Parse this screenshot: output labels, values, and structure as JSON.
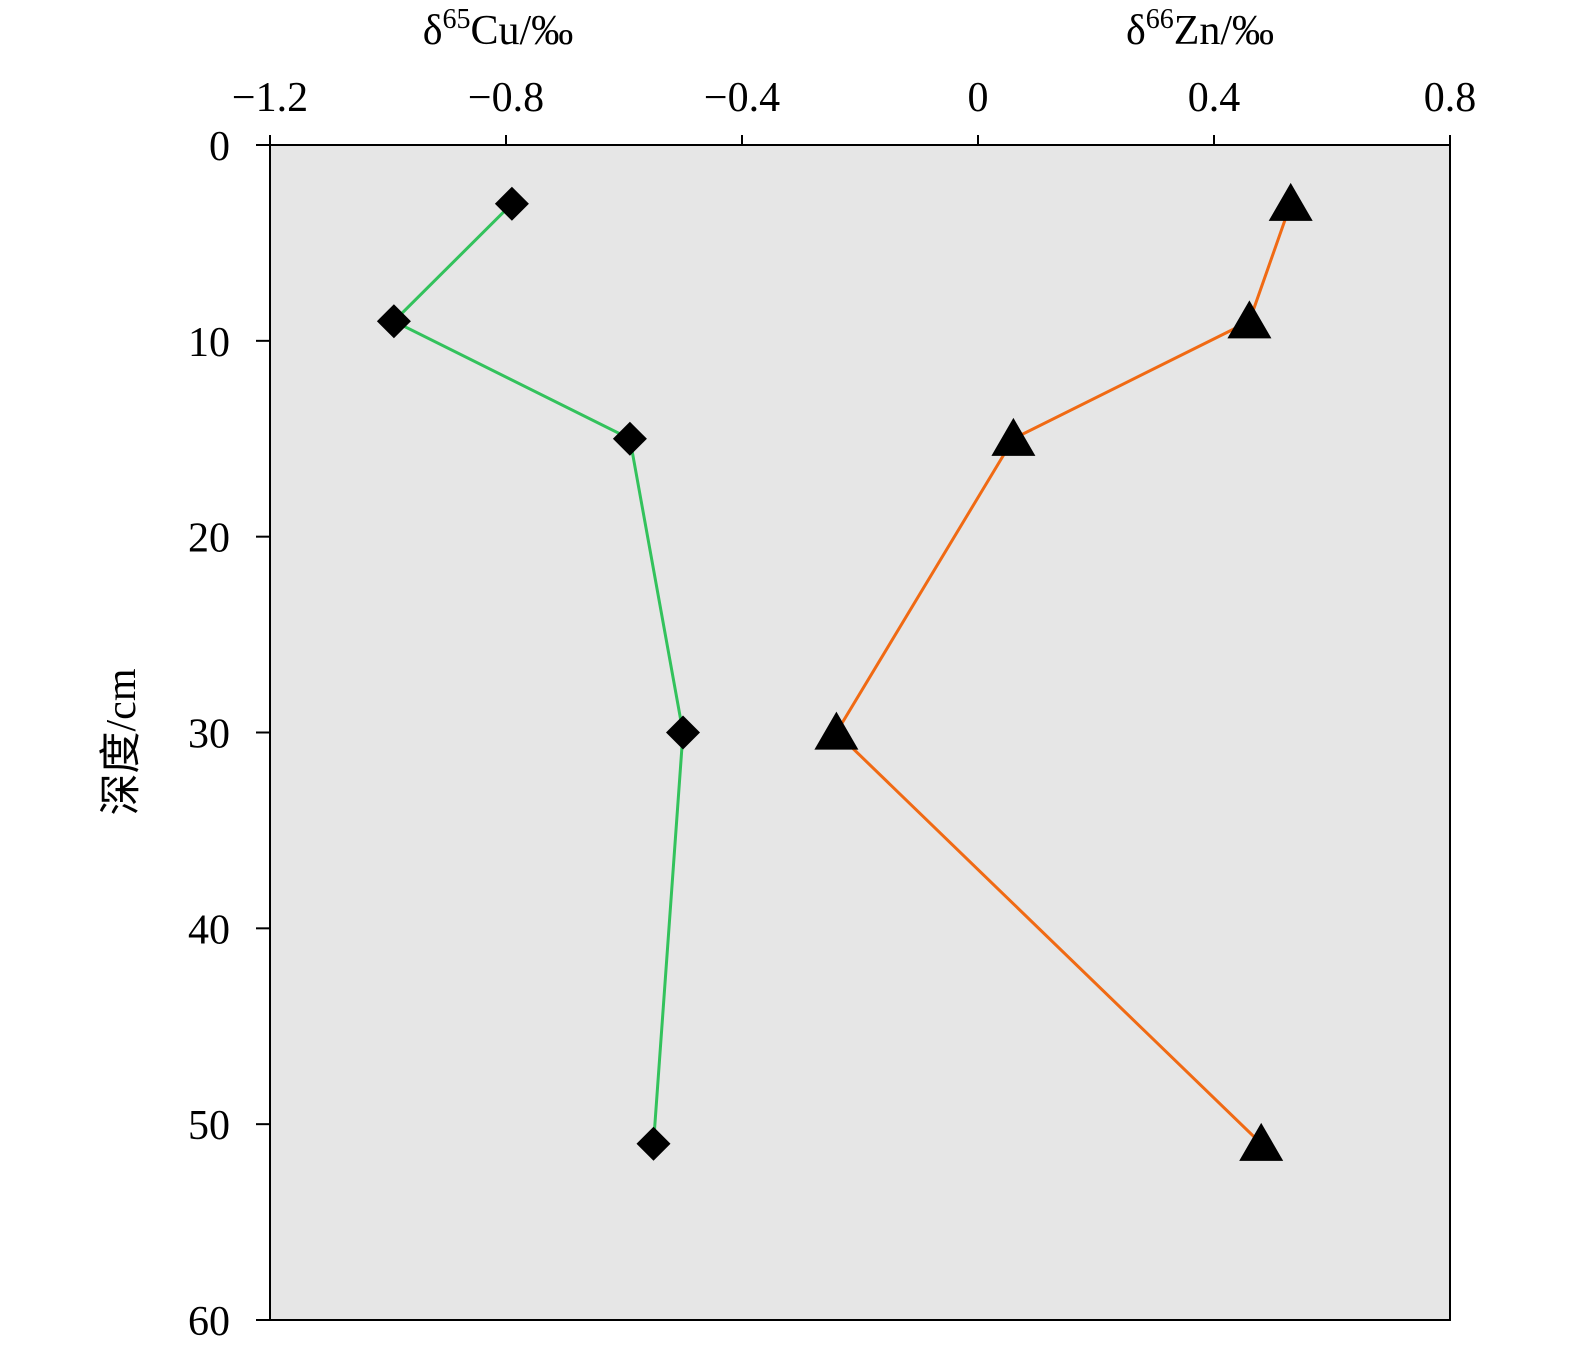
{
  "chart_data": {
    "type": "line",
    "orientation": "depth-profile",
    "x_axis": {
      "position": "top",
      "range": [
        -1.2,
        0.8
      ],
      "ticks": [
        -1.2,
        -0.8,
        -0.4,
        0,
        0.4,
        0.8
      ],
      "tick_labels": [
        "−1.2",
        "−0.8",
        "−0.4",
        "0",
        "0.4",
        "0.8"
      ],
      "labels": [
        {
          "prefix": "δ",
          "sup": "65",
          "suffix": "Cu/‰"
        },
        {
          "prefix": "δ",
          "sup": "66",
          "suffix": "Zn/‰"
        }
      ]
    },
    "y_axis": {
      "label": "深度/cm",
      "range": [
        0,
        60
      ],
      "inverted": true,
      "ticks": [
        0,
        10,
        20,
        30,
        40,
        50,
        60
      ],
      "tick_labels": [
        "0",
        "10",
        "20",
        "30",
        "40",
        "50",
        "60"
      ]
    },
    "grid": false,
    "plot_background": "#e6e6e6",
    "series": [
      {
        "marker": "diamond",
        "marker_color": "#000000",
        "line_color": "#33c25c",
        "points": [
          {
            "x": -0.79,
            "depth": 3
          },
          {
            "x": -0.99,
            "depth": 9
          },
          {
            "x": -0.59,
            "depth": 15
          },
          {
            "x": -0.5,
            "depth": 30
          },
          {
            "x": -0.55,
            "depth": 51
          }
        ]
      },
      {
        "marker": "triangle",
        "marker_color": "#000000",
        "line_color": "#f06a14",
        "points": [
          {
            "x": 0.53,
            "depth": 3
          },
          {
            "x": 0.46,
            "depth": 9
          },
          {
            "x": 0.06,
            "depth": 15
          },
          {
            "x": -0.24,
            "depth": 30
          },
          {
            "x": 0.48,
            "depth": 51
          }
        ]
      }
    ]
  }
}
